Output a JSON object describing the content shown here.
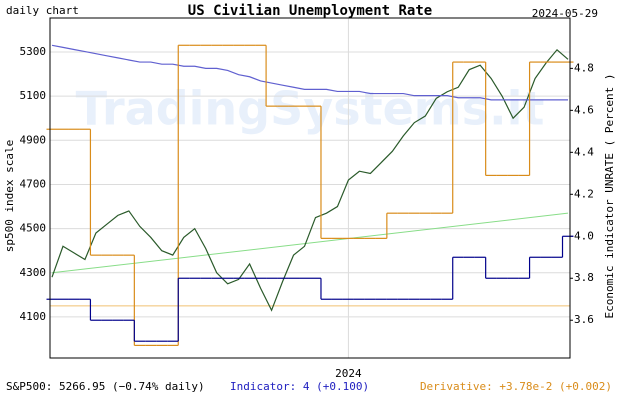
{
  "chart_data": {
    "type": "line",
    "title": "US Civilian Unemployment Rate",
    "subtitle": "daily chart",
    "date": "2024-05-29",
    "watermark": "TradingSystems.it",
    "ylabel": "sp500 index scale",
    "y2label": "Economic indicator UNRATE ( Percent )",
    "footer": {
      "left": "S&P500: 5266.95 (−0.74% daily)",
      "middle": "Indicator: 4 (+0.100)",
      "right": "Derivative: +3.78e-2 (+0.002)"
    },
    "categories": [
      null,
      null,
      null,
      null,
      null,
      null,
      null,
      null,
      null,
      null,
      null,
      null,
      null,
      null,
      null,
      null,
      null,
      null,
      null,
      null,
      null,
      null,
      null,
      null,
      null,
      null,
      null,
      "2024",
      null,
      null,
      null,
      null,
      null,
      null,
      null,
      null,
      null,
      null,
      null,
      null,
      null,
      null,
      null,
      null,
      null,
      null,
      null,
      null
    ],
    "ylim": [
      3914,
      5454
    ],
    "yticks": [
      4100,
      4300,
      4500,
      4700,
      4900,
      5100,
      5300
    ],
    "y2lim": [
      3.42,
      5.04
    ],
    "y2ticks": [
      3.6,
      3.8,
      {
        "value": 4,
        "label": "4.0"
      },
      4.2,
      4.4,
      4.6,
      4.8
    ],
    "grid": true,
    "series": [
      {
        "color": "#2a5a2a",
        "axis": "y",
        "step": false,
        "values": [
          4280,
          4420,
          4390,
          4360,
          4480,
          4520,
          4560,
          4580,
          4510,
          4460,
          4400,
          4380,
          4460,
          4500,
          4410,
          4300,
          4250,
          4270,
          4340,
          4230,
          4130,
          4260,
          4380,
          4420,
          4550,
          4570,
          4600,
          4720,
          4760,
          4750,
          4800,
          4850,
          4920,
          4980,
          5010,
          5090,
          5120,
          5140,
          5220,
          5240,
          5180,
          5100,
          5000,
          5050,
          5180,
          5250,
          5310,
          5267
        ]
      },
      {
        "color": "#6060d0",
        "axis": "y2",
        "step": false,
        "values": [
          4.91,
          4.9,
          4.89,
          4.88,
          4.87,
          4.86,
          4.85,
          4.84,
          4.83,
          4.83,
          4.82,
          4.82,
          4.81,
          4.81,
          4.8,
          4.8,
          4.79,
          4.77,
          4.76,
          4.74,
          4.73,
          4.72,
          4.71,
          4.7,
          4.7,
          4.7,
          4.69,
          4.69,
          4.69,
          4.68,
          4.68,
          4.68,
          4.68,
          4.67,
          4.67,
          4.67,
          4.67,
          4.66,
          4.66,
          4.66,
          4.65,
          4.65,
          4.65,
          4.65,
          4.65,
          4.65,
          4.65,
          4.65
        ]
      },
      {
        "color": "#d98c1a",
        "axis": "y2",
        "step": true,
        "values": [
          4.51,
          4.51,
          4.51,
          4.51,
          3.91,
          3.91,
          3.91,
          3.91,
          3.48,
          3.48,
          3.48,
          3.48,
          4.91,
          4.91,
          4.91,
          4.91,
          4.91,
          4.91,
          4.91,
          4.91,
          4.62,
          4.62,
          4.62,
          4.62,
          4.62,
          3.99,
          3.99,
          3.99,
          3.99,
          3.99,
          3.99,
          4.11,
          4.11,
          4.11,
          4.11,
          4.11,
          4.11,
          4.83,
          4.83,
          4.83,
          4.29,
          4.29,
          4.29,
          4.29,
          4.83,
          4.83,
          4.83,
          4.83
        ]
      },
      {
        "color": "#00008b",
        "axis": "y2",
        "step": true,
        "values": [
          3.7,
          3.7,
          3.7,
          3.7,
          3.6,
          3.6,
          3.6,
          3.6,
          3.5,
          3.5,
          3.5,
          3.5,
          3.8,
          3.8,
          3.8,
          3.8,
          3.8,
          3.8,
          3.8,
          3.8,
          3.8,
          3.8,
          3.8,
          3.8,
          3.8,
          3.7,
          3.7,
          3.7,
          3.7,
          3.7,
          3.7,
          3.7,
          3.7,
          3.7,
          3.7,
          3.7,
          3.7,
          3.9,
          3.9,
          3.9,
          3.8,
          3.8,
          3.8,
          3.8,
          3.9,
          3.9,
          3.9,
          4.0
        ]
      }
    ],
    "trend": {
      "color": "#88dd88",
      "values": [
        4300,
        4570
      ]
    },
    "hline": {
      "color": "#f0c070",
      "value": 4150
    }
  }
}
